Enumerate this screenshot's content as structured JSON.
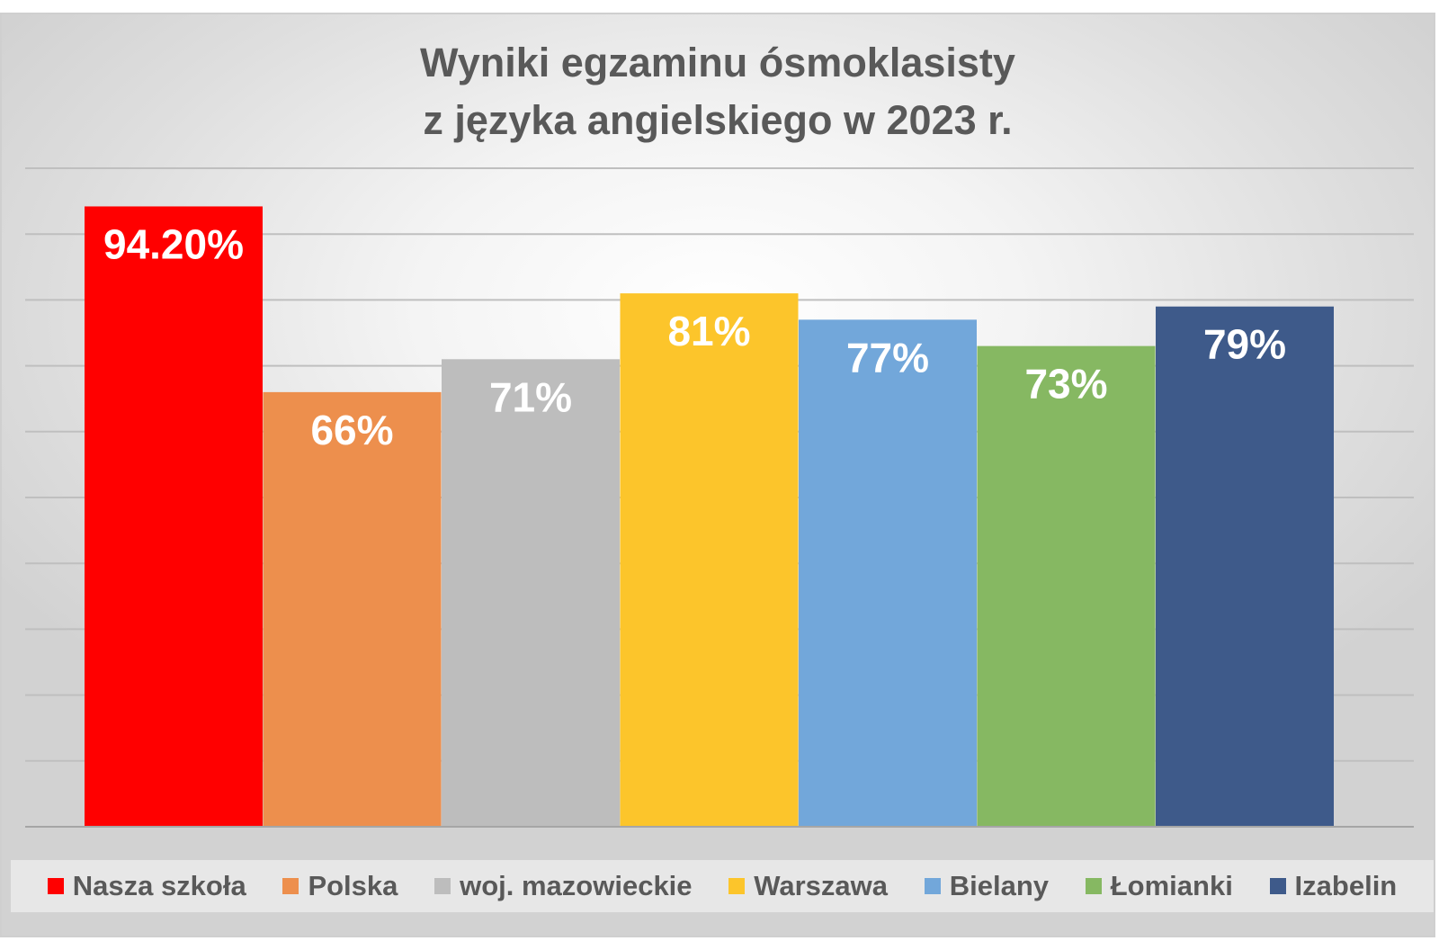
{
  "chart_data": {
    "type": "bar",
    "title_lines": [
      "Wyniki egzaminu ósmoklasisty",
      "z języka angielskiego w 2023 r."
    ],
    "categories": [
      "Nasza szkoła",
      "Polska",
      "woj. mazowieckie",
      "Warszawa",
      "Bielany",
      "Łomianki",
      "Izabelin"
    ],
    "values": [
      94.2,
      66,
      71,
      81,
      77,
      73,
      79
    ],
    "data_labels": [
      "94.20%",
      "66%",
      "71%",
      "81%",
      "77%",
      "73%",
      "79%"
    ],
    "colors": [
      "#ff0000",
      "#ed8f4d",
      "#bdbdbd",
      "#fcc52b",
      "#72a7da",
      "#86b862",
      "#3e5a8a"
    ],
    "ylim": [
      0,
      100
    ],
    "grid": true,
    "legend": "bottom",
    "xlabel": "",
    "ylabel": ""
  },
  "legend_items": [
    "Nasza szkoła",
    "Polska",
    "woj. mazowieckie",
    "Warszawa",
    "Bielany",
    "Łomianki",
    "Izabelin"
  ]
}
